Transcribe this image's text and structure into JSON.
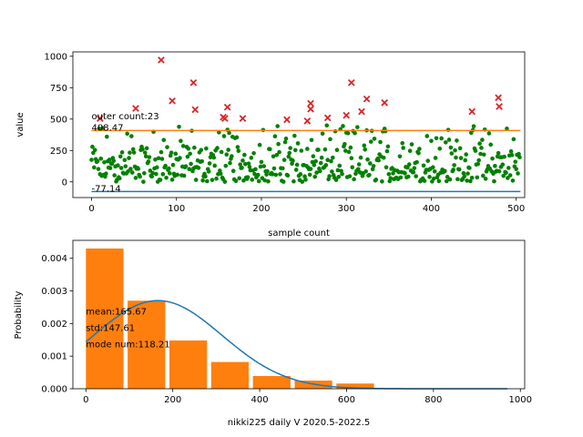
{
  "chart_data": [
    {
      "type": "scatter",
      "xlabel": "sample count",
      "ylabel": "value",
      "xlim": [
        -22,
        510
      ],
      "ylim": [
        -125,
        1035
      ],
      "xticks": [
        0,
        100,
        200,
        300,
        400,
        500
      ],
      "yticks": [
        0,
        250,
        500,
        750,
        1000
      ],
      "hlines": [
        {
          "value": 408.47,
          "color": "#ff7f0e"
        },
        {
          "value": -77.14,
          "color": "#1f77b4"
        }
      ],
      "annotations": [
        {
          "text": "outer count:23",
          "x": 0,
          "y": 500
        },
        {
          "text": "408.47",
          "x": 0,
          "y": 408.47
        },
        {
          "text": "-77.14",
          "x": 0,
          "y": -77.14
        }
      ],
      "inlier_color": "#008000",
      "outlier_color": "#d62728",
      "series": [
        {
          "marker": "x",
          "points": [
            [
              10,
              505
            ],
            [
              52,
              585
            ],
            [
              82,
              970
            ],
            [
              95,
              645
            ],
            [
              120,
              790
            ],
            [
              122,
              575
            ],
            [
              155,
              515
            ],
            [
              157,
              505
            ],
            [
              160,
              595
            ],
            [
              178,
              505
            ],
            [
              230,
              495
            ],
            [
              254,
              485
            ],
            [
              258,
              625
            ],
            [
              258,
              580
            ],
            [
              278,
              510
            ],
            [
              300,
              530
            ],
            [
              306,
              790
            ],
            [
              318,
              560
            ],
            [
              324,
              660
            ],
            [
              345,
              630
            ],
            [
              448,
              560
            ],
            [
              479,
              670
            ],
            [
              480,
              600
            ]
          ]
        }
      ]
    },
    {
      "type": "bar",
      "xlabel": "nikki225 daily V 2020.5-2022.5",
      "ylabel": "Probability",
      "xlim": [
        -30,
        1010
      ],
      "ylim": [
        0,
        0.00455
      ],
      "xticks": [
        0,
        200,
        400,
        600,
        800,
        1000
      ],
      "yticks": [
        "0.000",
        "0.001",
        "0.002",
        "0.003",
        "0.004"
      ],
      "bin_width": 96.1,
      "bar_color": "#ff7f0e",
      "line_color": "#1f77b4",
      "bars": [
        {
          "x": 0,
          "value": 0.0043
        },
        {
          "x": 96.1,
          "value": 0.0027
        },
        {
          "x": 192.2,
          "value": 0.00148
        },
        {
          "x": 288.3,
          "value": 0.00082
        },
        {
          "x": 384.4,
          "value": 0.00039
        },
        {
          "x": 480.5,
          "value": 0.00025
        },
        {
          "x": 576.6,
          "value": 0.00016
        },
        {
          "x": 672.7,
          "value": 0
        },
        {
          "x": 768.8,
          "value": 0
        },
        {
          "x": 864.9,
          "value": 0
        }
      ],
      "curve": {
        "mean": 165.67,
        "std": 147.61,
        "x_start": 0,
        "x_end": 970
      },
      "annotations": [
        {
          "text": "mean:165.67"
        },
        {
          "text": "std:147.61"
        },
        {
          "text": "mode num:118.21"
        }
      ]
    }
  ]
}
